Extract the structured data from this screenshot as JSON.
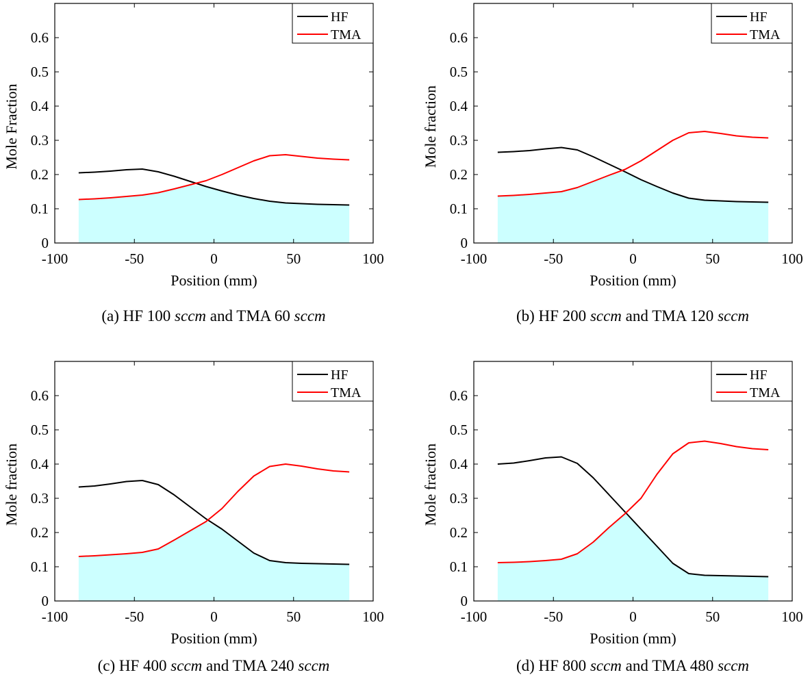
{
  "chart_data": [
    {
      "type": "line",
      "caption": {
        "prefix": "(a) HF 100 ",
        "unit1": "sccm",
        "middle": " and TMA 60 ",
        "unit2": "sccm"
      },
      "xlabel": "Position (mm)",
      "ylabel": "Mole Fraction",
      "xlim": [
        -100,
        100
      ],
      "ylim": [
        0,
        0.7
      ],
      "xticks": [
        -100,
        -50,
        0,
        50,
        100
      ],
      "yticks": [
        0,
        0.1,
        0.2,
        0.3,
        0.4,
        0.5,
        0.6
      ],
      "xtick_labels": [
        "-100",
        "-50",
        "0",
        "50",
        "100"
      ],
      "ytick_labels": [
        "0",
        "0.1",
        "0.2",
        "0.3",
        "0.4",
        "0.5",
        "0.6"
      ],
      "legend": {
        "position": "top-right",
        "entries": [
          "HF",
          "TMA"
        ]
      },
      "fill": {
        "description": "min of HF and TMA",
        "color": "#ccffff"
      },
      "series": [
        {
          "name": "HF",
          "color": "#000000",
          "x": [
            -85,
            -75,
            -65,
            -55,
            -45,
            -35,
            -25,
            -15,
            -5,
            5,
            15,
            25,
            35,
            45,
            55,
            65,
            75,
            85
          ],
          "y": [
            0.205,
            0.207,
            0.21,
            0.214,
            0.216,
            0.208,
            0.195,
            0.18,
            0.165,
            0.152,
            0.14,
            0.13,
            0.122,
            0.117,
            0.115,
            0.113,
            0.112,
            0.111
          ]
        },
        {
          "name": "TMA",
          "color": "#ff0000",
          "x": [
            -85,
            -75,
            -65,
            -55,
            -45,
            -35,
            -25,
            -15,
            -5,
            5,
            15,
            25,
            35,
            45,
            55,
            65,
            75,
            85
          ],
          "y": [
            0.127,
            0.129,
            0.132,
            0.136,
            0.14,
            0.147,
            0.158,
            0.17,
            0.182,
            0.2,
            0.22,
            0.24,
            0.255,
            0.258,
            0.253,
            0.248,
            0.245,
            0.243
          ]
        }
      ]
    },
    {
      "type": "line",
      "caption": {
        "prefix": "(b) HF 200 ",
        "unit1": "sccm",
        "middle": " and TMA 120 ",
        "unit2": "sccm"
      },
      "xlabel": "Position (mm)",
      "ylabel": "Mole fraction",
      "xlim": [
        -100,
        100
      ],
      "ylim": [
        0,
        0.7
      ],
      "xticks": [
        -100,
        -50,
        0,
        50,
        100
      ],
      "yticks": [
        0,
        0.1,
        0.2,
        0.3,
        0.4,
        0.5,
        0.6
      ],
      "xtick_labels": [
        "-100",
        "-50",
        "0",
        "50",
        "100"
      ],
      "ytick_labels": [
        "0",
        "0.1",
        "0.2",
        "0.3",
        "0.4",
        "0.5",
        "0.6"
      ],
      "legend": {
        "position": "top-right",
        "entries": [
          "HF",
          "TMA"
        ]
      },
      "fill": {
        "description": "min of HF and TMA",
        "color": "#ccffff"
      },
      "series": [
        {
          "name": "HF",
          "color": "#000000",
          "x": [
            -85,
            -75,
            -65,
            -55,
            -45,
            -35,
            -25,
            -15,
            -5,
            5,
            15,
            25,
            35,
            45,
            55,
            65,
            75,
            85
          ],
          "y": [
            0.265,
            0.267,
            0.27,
            0.275,
            0.279,
            0.272,
            0.252,
            0.23,
            0.208,
            0.185,
            0.165,
            0.146,
            0.131,
            0.125,
            0.123,
            0.121,
            0.12,
            0.119
          ]
        },
        {
          "name": "TMA",
          "color": "#ff0000",
          "x": [
            -85,
            -75,
            -65,
            -55,
            -45,
            -35,
            -25,
            -15,
            -5,
            5,
            15,
            25,
            35,
            45,
            55,
            65,
            75,
            85
          ],
          "y": [
            0.137,
            0.139,
            0.142,
            0.146,
            0.15,
            0.162,
            0.18,
            0.198,
            0.215,
            0.24,
            0.27,
            0.3,
            0.322,
            0.326,
            0.32,
            0.313,
            0.309,
            0.307
          ]
        }
      ]
    },
    {
      "type": "line",
      "caption": {
        "prefix": "(c) HF 400 ",
        "unit1": "sccm",
        "middle": " and TMA 240 ",
        "unit2": "sccm"
      },
      "xlabel": "Position (mm)",
      "ylabel": "Mole fraction",
      "xlim": [
        -100,
        100
      ],
      "ylim": [
        0,
        0.7
      ],
      "xticks": [
        -100,
        -50,
        0,
        50,
        100
      ],
      "yticks": [
        0,
        0.1,
        0.2,
        0.3,
        0.4,
        0.5,
        0.6
      ],
      "xtick_labels": [
        "-100",
        "-50",
        "0",
        "50",
        "100"
      ],
      "ytick_labels": [
        "0",
        "0.1",
        "0.2",
        "0.3",
        "0.4",
        "0.5",
        "0.6"
      ],
      "legend": {
        "position": "top-right",
        "entries": [
          "HF",
          "TMA"
        ]
      },
      "fill": {
        "description": "min of HF and TMA",
        "color": "#ccffff"
      },
      "series": [
        {
          "name": "HF",
          "color": "#000000",
          "x": [
            -85,
            -75,
            -65,
            -55,
            -45,
            -35,
            -25,
            -15,
            -5,
            5,
            15,
            25,
            35,
            45,
            55,
            65,
            75,
            85
          ],
          "y": [
            0.333,
            0.336,
            0.342,
            0.349,
            0.352,
            0.34,
            0.31,
            0.275,
            0.24,
            0.21,
            0.175,
            0.14,
            0.118,
            0.112,
            0.11,
            0.109,
            0.108,
            0.107
          ]
        },
        {
          "name": "TMA",
          "color": "#ff0000",
          "x": [
            -85,
            -75,
            -65,
            -55,
            -45,
            -35,
            -25,
            -15,
            -5,
            5,
            15,
            25,
            35,
            45,
            55,
            65,
            75,
            85
          ],
          "y": [
            0.13,
            0.132,
            0.135,
            0.138,
            0.142,
            0.152,
            0.178,
            0.205,
            0.232,
            0.27,
            0.32,
            0.365,
            0.393,
            0.4,
            0.394,
            0.386,
            0.38,
            0.377
          ]
        }
      ]
    },
    {
      "type": "line",
      "caption": {
        "prefix": "(d) HF 800 ",
        "unit1": "sccm",
        "middle": " and TMA 480 ",
        "unit2": "sccm"
      },
      "xlabel": "Position (mm)",
      "ylabel": "Mole fraction",
      "xlim": [
        -100,
        100
      ],
      "ylim": [
        0,
        0.7
      ],
      "xticks": [
        -100,
        -50,
        0,
        50,
        100
      ],
      "yticks": [
        0,
        0.1,
        0.2,
        0.3,
        0.4,
        0.5,
        0.6
      ],
      "xtick_labels": [
        "-100",
        "-50",
        "0",
        "50",
        "100"
      ],
      "ytick_labels": [
        "0",
        "0.1",
        "0.2",
        "0.3",
        "0.4",
        "0.5",
        "0.6"
      ],
      "legend": {
        "position": "top-right",
        "entries": [
          "HF",
          "TMA"
        ]
      },
      "fill": {
        "description": "min of HF and TMA",
        "color": "#ccffff"
      },
      "series": [
        {
          "name": "HF",
          "color": "#000000",
          "x": [
            -85,
            -75,
            -65,
            -55,
            -45,
            -35,
            -25,
            -15,
            -5,
            5,
            15,
            25,
            35,
            45,
            55,
            65,
            75,
            85
          ],
          "y": [
            0.4,
            0.403,
            0.41,
            0.418,
            0.421,
            0.402,
            0.36,
            0.31,
            0.26,
            0.21,
            0.16,
            0.11,
            0.08,
            0.075,
            0.074,
            0.073,
            0.072,
            0.071
          ]
        },
        {
          "name": "TMA",
          "color": "#ff0000",
          "x": [
            -85,
            -75,
            -65,
            -55,
            -45,
            -35,
            -25,
            -15,
            -5,
            5,
            15,
            25,
            35,
            45,
            55,
            65,
            75,
            85
          ],
          "y": [
            0.112,
            0.113,
            0.115,
            0.118,
            0.122,
            0.138,
            0.172,
            0.215,
            0.255,
            0.3,
            0.37,
            0.43,
            0.462,
            0.467,
            0.46,
            0.451,
            0.445,
            0.442
          ]
        }
      ]
    }
  ]
}
